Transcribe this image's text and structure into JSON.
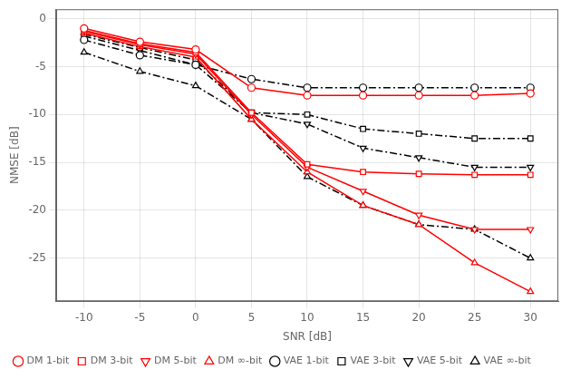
{
  "chart_data": {
    "type": "line",
    "xlabel": "SNR [dB]",
    "ylabel": "NMSE [dB]",
    "x": [
      -10,
      -5,
      0,
      5,
      10,
      15,
      20,
      25,
      30
    ],
    "series": [
      {
        "name": "DM 1-bit",
        "color": "#ff0000",
        "marker": "circle",
        "line_style": "solid",
        "values": [
          -1.0,
          -2.4,
          -3.2,
          -7.2,
          -8.0,
          -8.0,
          -8.0,
          -8.0,
          -7.8
        ]
      },
      {
        "name": "DM 3-bit",
        "color": "#ff0000",
        "marker": "square",
        "line_style": "solid",
        "values": [
          -1.2,
          -2.6,
          -3.5,
          -9.8,
          -15.2,
          -16.0,
          -16.2,
          -16.3,
          -16.3
        ]
      },
      {
        "name": "DM 5-bit",
        "color": "#ff0000",
        "marker": "triangle-down",
        "line_style": "solid",
        "values": [
          -1.3,
          -2.7,
          -3.7,
          -10.0,
          -15.5,
          -18.0,
          -20.5,
          -22.0,
          -22.0
        ]
      },
      {
        "name": "DM ∞-bit",
        "color": "#ff0000",
        "marker": "triangle-up",
        "line_style": "solid",
        "values": [
          -1.5,
          -2.9,
          -4.0,
          -10.5,
          -16.0,
          -19.5,
          -21.5,
          -25.5,
          -28.5
        ]
      },
      {
        "name": "VAE 1-bit",
        "color": "#000000",
        "marker": "circle",
        "line_style": "dashdot",
        "values": [
          -2.2,
          -3.8,
          -4.8,
          -6.3,
          -7.2,
          -7.2,
          -7.2,
          -7.2,
          -7.2
        ]
      },
      {
        "name": "VAE 3-bit",
        "color": "#000000",
        "marker": "square",
        "line_style": "dashdot",
        "values": [
          -1.6,
          -3.0,
          -4.3,
          -9.8,
          -10.0,
          -11.5,
          -12.0,
          -12.5,
          -12.5
        ]
      },
      {
        "name": "VAE 5-bit",
        "color": "#000000",
        "marker": "triangle-down",
        "line_style": "dashdot",
        "values": [
          -1.8,
          -3.3,
          -4.8,
          -9.8,
          -11.0,
          -13.5,
          -14.5,
          -15.5,
          -15.5
        ]
      },
      {
        "name": "VAE ∞-bit",
        "color": "#000000",
        "marker": "triangle-up",
        "line_style": "dashdot",
        "values": [
          -3.5,
          -5.5,
          -7.0,
          -10.5,
          -16.5,
          -19.5,
          -21.5,
          -22.0,
          -25.0
        ]
      }
    ],
    "xlim": [
      -12.5,
      32.5
    ],
    "ylim": [
      -29.5,
      1.0
    ],
    "xticks": [
      -10,
      -5,
      0,
      5,
      10,
      15,
      20,
      25,
      30
    ],
    "yticks": [
      0,
      -5,
      -10,
      -15,
      -20,
      -25
    ],
    "grid": true,
    "legend": "lower left"
  }
}
